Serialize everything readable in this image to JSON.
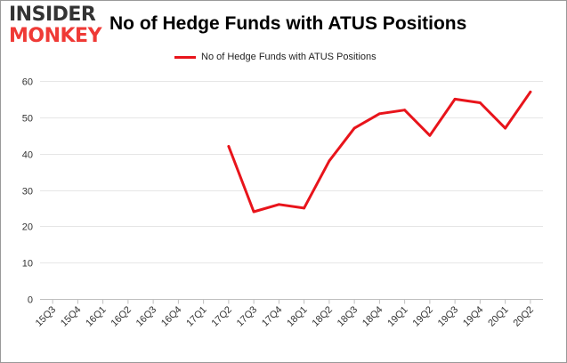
{
  "logo": {
    "line1": "INSIDER",
    "line2": "MONKEY"
  },
  "colors": {
    "series": "#e8141b",
    "logo_dark": "#333333",
    "logo_red": "#ef3a36",
    "gridline": "#e6e6e6",
    "frame": "#999999"
  },
  "chart_data": {
    "type": "line",
    "title": "No of Hedge Funds with ATUS Positions",
    "xlabel": "",
    "ylabel": "",
    "ylim": [
      0,
      60
    ],
    "yticks": [
      0,
      10,
      20,
      30,
      40,
      50,
      60
    ],
    "grid": true,
    "legend_position": "top-center",
    "categories": [
      "15Q3",
      "15Q4",
      "16Q1",
      "16Q2",
      "16Q3",
      "16Q4",
      "17Q1",
      "17Q2",
      "17Q3",
      "17Q4",
      "18Q1",
      "18Q2",
      "18Q3",
      "18Q4",
      "19Q1",
      "19Q2",
      "19Q3",
      "19Q4",
      "20Q1",
      "20Q2"
    ],
    "series": [
      {
        "name": "No of Hedge Funds with ATUS Positions",
        "color": "#e8141b",
        "values": [
          null,
          null,
          null,
          null,
          null,
          null,
          null,
          42,
          24,
          26,
          25,
          38,
          47,
          51,
          52,
          45,
          55,
          54,
          47,
          57
        ]
      }
    ]
  }
}
